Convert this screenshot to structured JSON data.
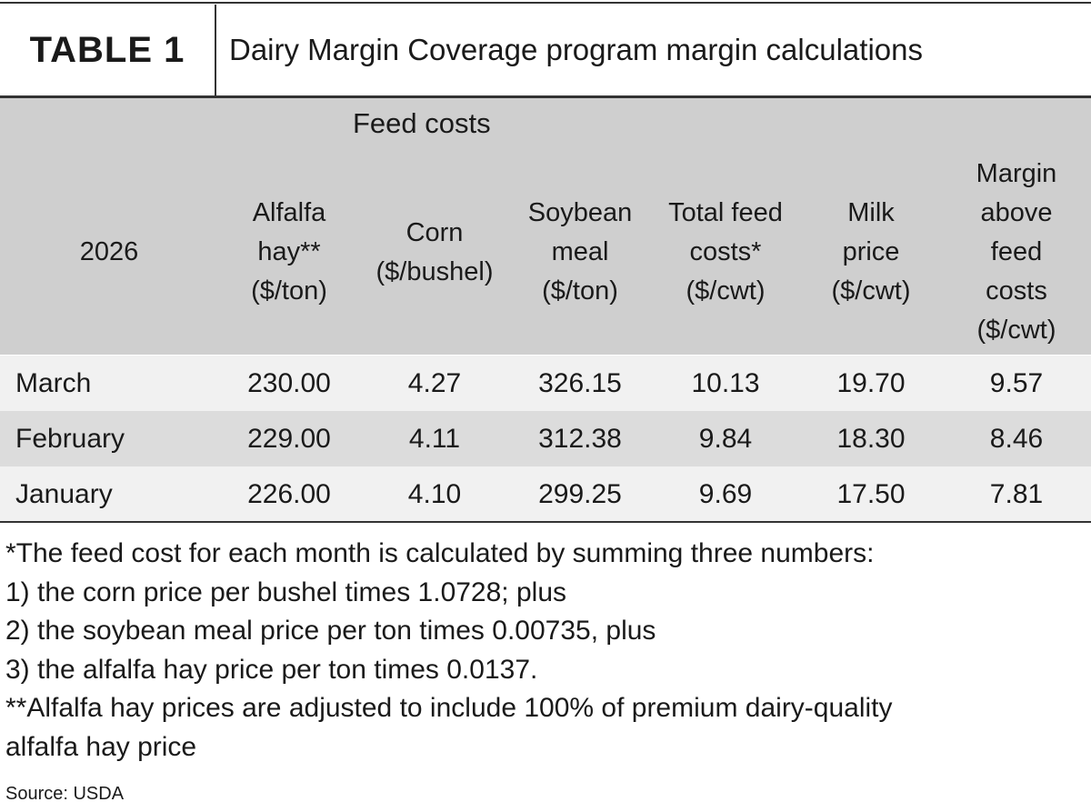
{
  "header": {
    "tag": "TABLE 1",
    "title": "Dairy Margin Coverage program margin calculations"
  },
  "table": {
    "group_label": "Feed costs",
    "columns": [
      "2026",
      "Alfalfa hay** ($/ton)",
      "Corn ($/bushel)",
      "Soybean meal ($/ton)",
      "Total feed costs* ($/cwt)",
      "Milk price ($/cwt)",
      "Margin above feed costs ($/cwt)"
    ],
    "rows": [
      [
        "March",
        "230.00",
        "4.27",
        "326.15",
        "10.13",
        "19.70",
        "9.57"
      ],
      [
        "February",
        "229.00",
        "4.11",
        "312.38",
        "9.84",
        "18.30",
        "8.46"
      ],
      [
        "January",
        "226.00",
        "4.10",
        "299.25",
        "9.69",
        "17.50",
        "7.81"
      ]
    ]
  },
  "notes": [
    "*The feed cost for each month is calculated by summing three numbers:",
    "1) the corn price per bushel times 1.0728; plus",
    "2) the soybean meal price per ton times 0.00735, plus",
    "3) the alfalfa hay price per ton times 0.0137.",
    "**Alfalfa hay prices are adjusted to include 100% of premium dairy-quality",
    "alfalfa hay price"
  ],
  "source": "Source: USDA"
}
